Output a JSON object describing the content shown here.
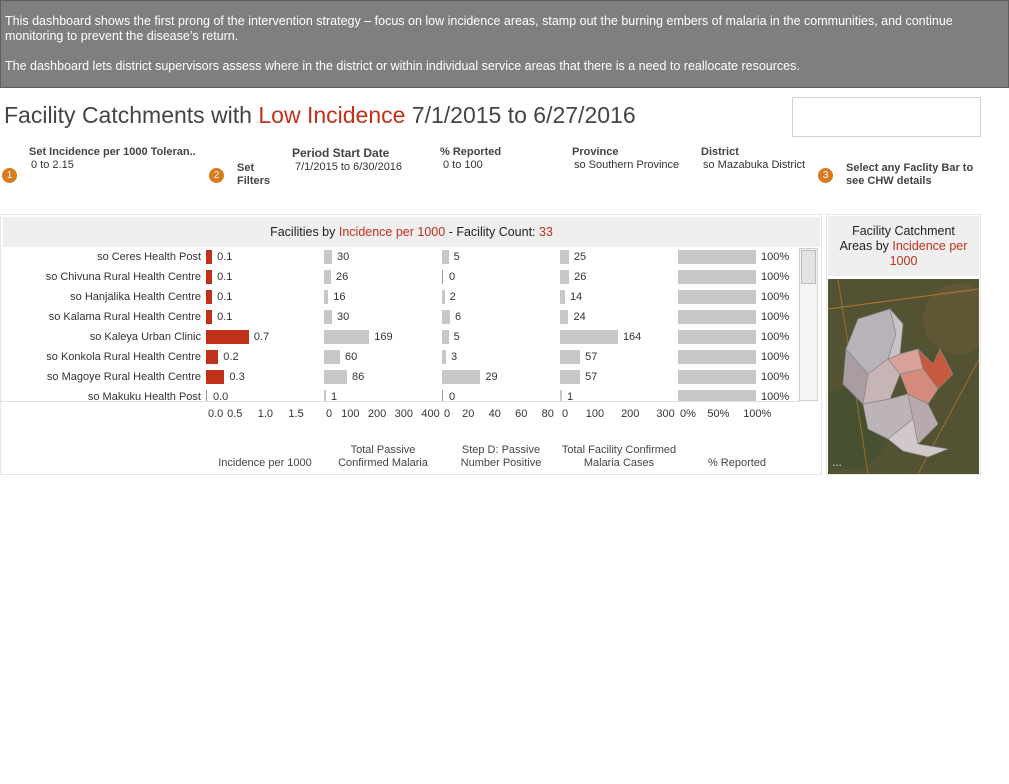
{
  "banner": {
    "line1": "This dashboard shows the first prong of the intervention strategy – focus on low incidence areas, stamp out the burning embers of malaria in the communities, and continue monitoring to prevent the disease’s return.",
    "line2": "The dashboard lets district supervisors assess where in the district or within individual service areas that there is a need to reallocate resources."
  },
  "title": {
    "prefix": "Facility Catchments with ",
    "highlight": "Low Incidence",
    "suffix": " 7/1/2015 to 6/27/2016"
  },
  "filters": [
    {
      "label": "Set Incidence per 1000 Toleran..",
      "value": "0 to 2.15"
    },
    {
      "label": "Period Start Date",
      "value": "7/1/2015 to 6/30/2016"
    },
    {
      "label": "% Reported",
      "value": "0 to 100"
    },
    {
      "label": "Province",
      "value": "so Southern Province"
    },
    {
      "label": "District",
      "value": "so Mazabuka District"
    }
  ],
  "steps": [
    {
      "num": "1"
    },
    {
      "num": "2",
      "text": "Set\nFilters"
    },
    {
      "num": "3",
      "text": "Select any Faclity Bar to\nsee CHW details"
    }
  ],
  "panel": {
    "head_prefix": "Facilities by ",
    "head_highlight": "Incidence per 1000",
    "head_mid": " - Facility Count: ",
    "head_count": "33"
  },
  "colors": {
    "accent": "#c0311a",
    "bar_gray": "#c8c8c8",
    "step": "#d97a1c",
    "banner": "#7f7f7f"
  },
  "columns": [
    {
      "key": "incidence",
      "title": "Incidence per 1000",
      "max": 1.5,
      "ticks": [
        "0.0",
        "0.5",
        "1.0",
        "1.5"
      ]
    },
    {
      "key": "passive",
      "title": "Total Passive\nConfirmed Malaria",
      "max": 400,
      "ticks": [
        "0",
        "100",
        "200",
        "300",
        "400"
      ]
    },
    {
      "key": "stepd",
      "title": "Step D: Passive\nNumber Positive",
      "max": 80,
      "ticks": [
        "0",
        "20",
        "40",
        "60",
        "80"
      ]
    },
    {
      "key": "confirmed",
      "title": "Total Facility Confirmed\nMalaria Cases",
      "max": 300,
      "ticks": [
        "0",
        "100",
        "200",
        "300"
      ]
    },
    {
      "key": "reported",
      "title": "% Reported",
      "max": 100,
      "ticks": [
        "0%",
        "50%",
        "100%"
      ]
    }
  ],
  "rows": [
    {
      "name": "so Ceres Health Post",
      "incidence": 0.1,
      "incidence_label": "0.1",
      "passive": 30,
      "stepd": 5,
      "confirmed": 25,
      "reported": 100,
      "reported_label": "100%"
    },
    {
      "name": "so Chivuna Rural Health Centre",
      "incidence": 0.1,
      "incidence_label": "0.1",
      "passive": 26,
      "stepd": 0,
      "confirmed": 26,
      "reported": 100,
      "reported_label": "100%"
    },
    {
      "name": "so Hanjalika Health Centre",
      "incidence": 0.1,
      "incidence_label": "0.1",
      "passive": 16,
      "stepd": 2,
      "confirmed": 14,
      "reported": 100,
      "reported_label": "100%"
    },
    {
      "name": "so Kalama Rural Health Centre",
      "incidence": 0.1,
      "incidence_label": "0.1",
      "passive": 30,
      "stepd": 6,
      "confirmed": 24,
      "reported": 100,
      "reported_label": "100%"
    },
    {
      "name": "so Kaleya Urban Clinic",
      "incidence": 0.7,
      "incidence_label": "0.7",
      "passive": 169,
      "stepd": 5,
      "confirmed": 164,
      "reported": 100,
      "reported_label": "100%"
    },
    {
      "name": "so Konkola Rural Health Centre",
      "incidence": 0.2,
      "incidence_label": "0.2",
      "passive": 60,
      "stepd": 3,
      "confirmed": 57,
      "reported": 100,
      "reported_label": "100%"
    },
    {
      "name": "so Magoye Rural Health Centre",
      "incidence": 0.3,
      "incidence_label": "0.3",
      "passive": 86,
      "stepd": 29,
      "confirmed": 57,
      "reported": 100,
      "reported_label": "100%"
    },
    {
      "name": "so Makuku Health Post",
      "incidence": 0.0,
      "incidence_label": "0.0",
      "passive": 1,
      "stepd": 0,
      "confirmed": 1,
      "reported": 100,
      "reported_label": "100%"
    }
  ],
  "map_panel": {
    "head_line1": "Facility Catchment",
    "head_prefix": "Areas by ",
    "head_highlight": "Incidence per 1000"
  }
}
